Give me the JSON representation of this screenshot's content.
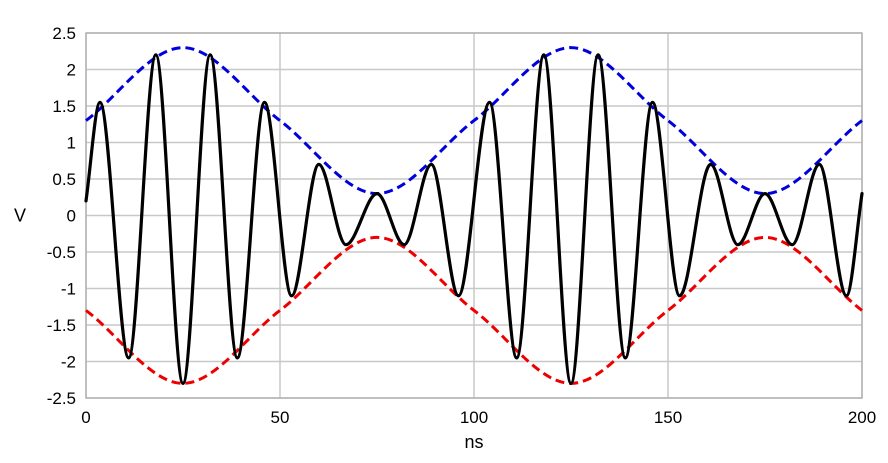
{
  "chart_data": {
    "type": "line",
    "title": "",
    "xlabel": "ns",
    "ylabel": "V",
    "xlim": [
      0,
      200
    ],
    "ylim": [
      -2.5,
      2.5
    ],
    "x_ticks": [
      0,
      50,
      100,
      150,
      200
    ],
    "x_tick_labels": [
      "0",
      "50",
      "100",
      "150",
      "200"
    ],
    "y_ticks": [
      2.5,
      2,
      1.5,
      1,
      0.5,
      0,
      -0.5,
      -1,
      -1.5,
      -2,
      -2.5
    ],
    "y_tick_labels": [
      "2.5",
      "2",
      "1.5",
      "1",
      "0.5",
      "0",
      "-0.5",
      "-1",
      "-1.5",
      "-2",
      "-2.5"
    ],
    "grid": true,
    "legend": "none",
    "series": [
      {
        "color": "#000000",
        "style": "solid",
        "x": [
          0,
          3.6,
          11,
          18,
          25,
          32,
          39,
          46,
          53,
          60,
          67,
          75,
          82,
          89,
          96,
          104,
          111,
          118,
          125,
          132,
          139,
          146,
          153,
          161,
          168,
          175,
          182,
          189,
          196,
          200
        ],
        "y": [
          0.2,
          1.55,
          -1.95,
          2.2,
          -2.3,
          2.2,
          -1.95,
          1.55,
          -1.1,
          0.7,
          -0.4,
          0.3,
          -0.4,
          0.7,
          -1.1,
          1.55,
          -1.95,
          2.2,
          -2.3,
          2.2,
          -1.95,
          1.55,
          -1.1,
          0.7,
          -0.4,
          0.3,
          -0.4,
          0.7,
          -1.1,
          0.3
        ]
      },
      {
        "color": "#0000dd",
        "style": "dashed",
        "x": [
          0,
          25,
          50,
          75,
          100,
          125,
          150,
          175,
          200
        ],
        "y": [
          1.3,
          2.3,
          1.3,
          0.3,
          1.3,
          2.3,
          1.3,
          0.3,
          1.3
        ]
      },
      {
        "color": "#ee0000",
        "style": "dashed",
        "x": [
          0,
          25,
          50,
          75,
          100,
          125,
          150,
          175,
          200
        ],
        "y": [
          -1.3,
          -2.3,
          -1.3,
          -0.3,
          -1.3,
          -2.3,
          -1.3,
          -0.3,
          -1.3
        ]
      }
    ]
  }
}
